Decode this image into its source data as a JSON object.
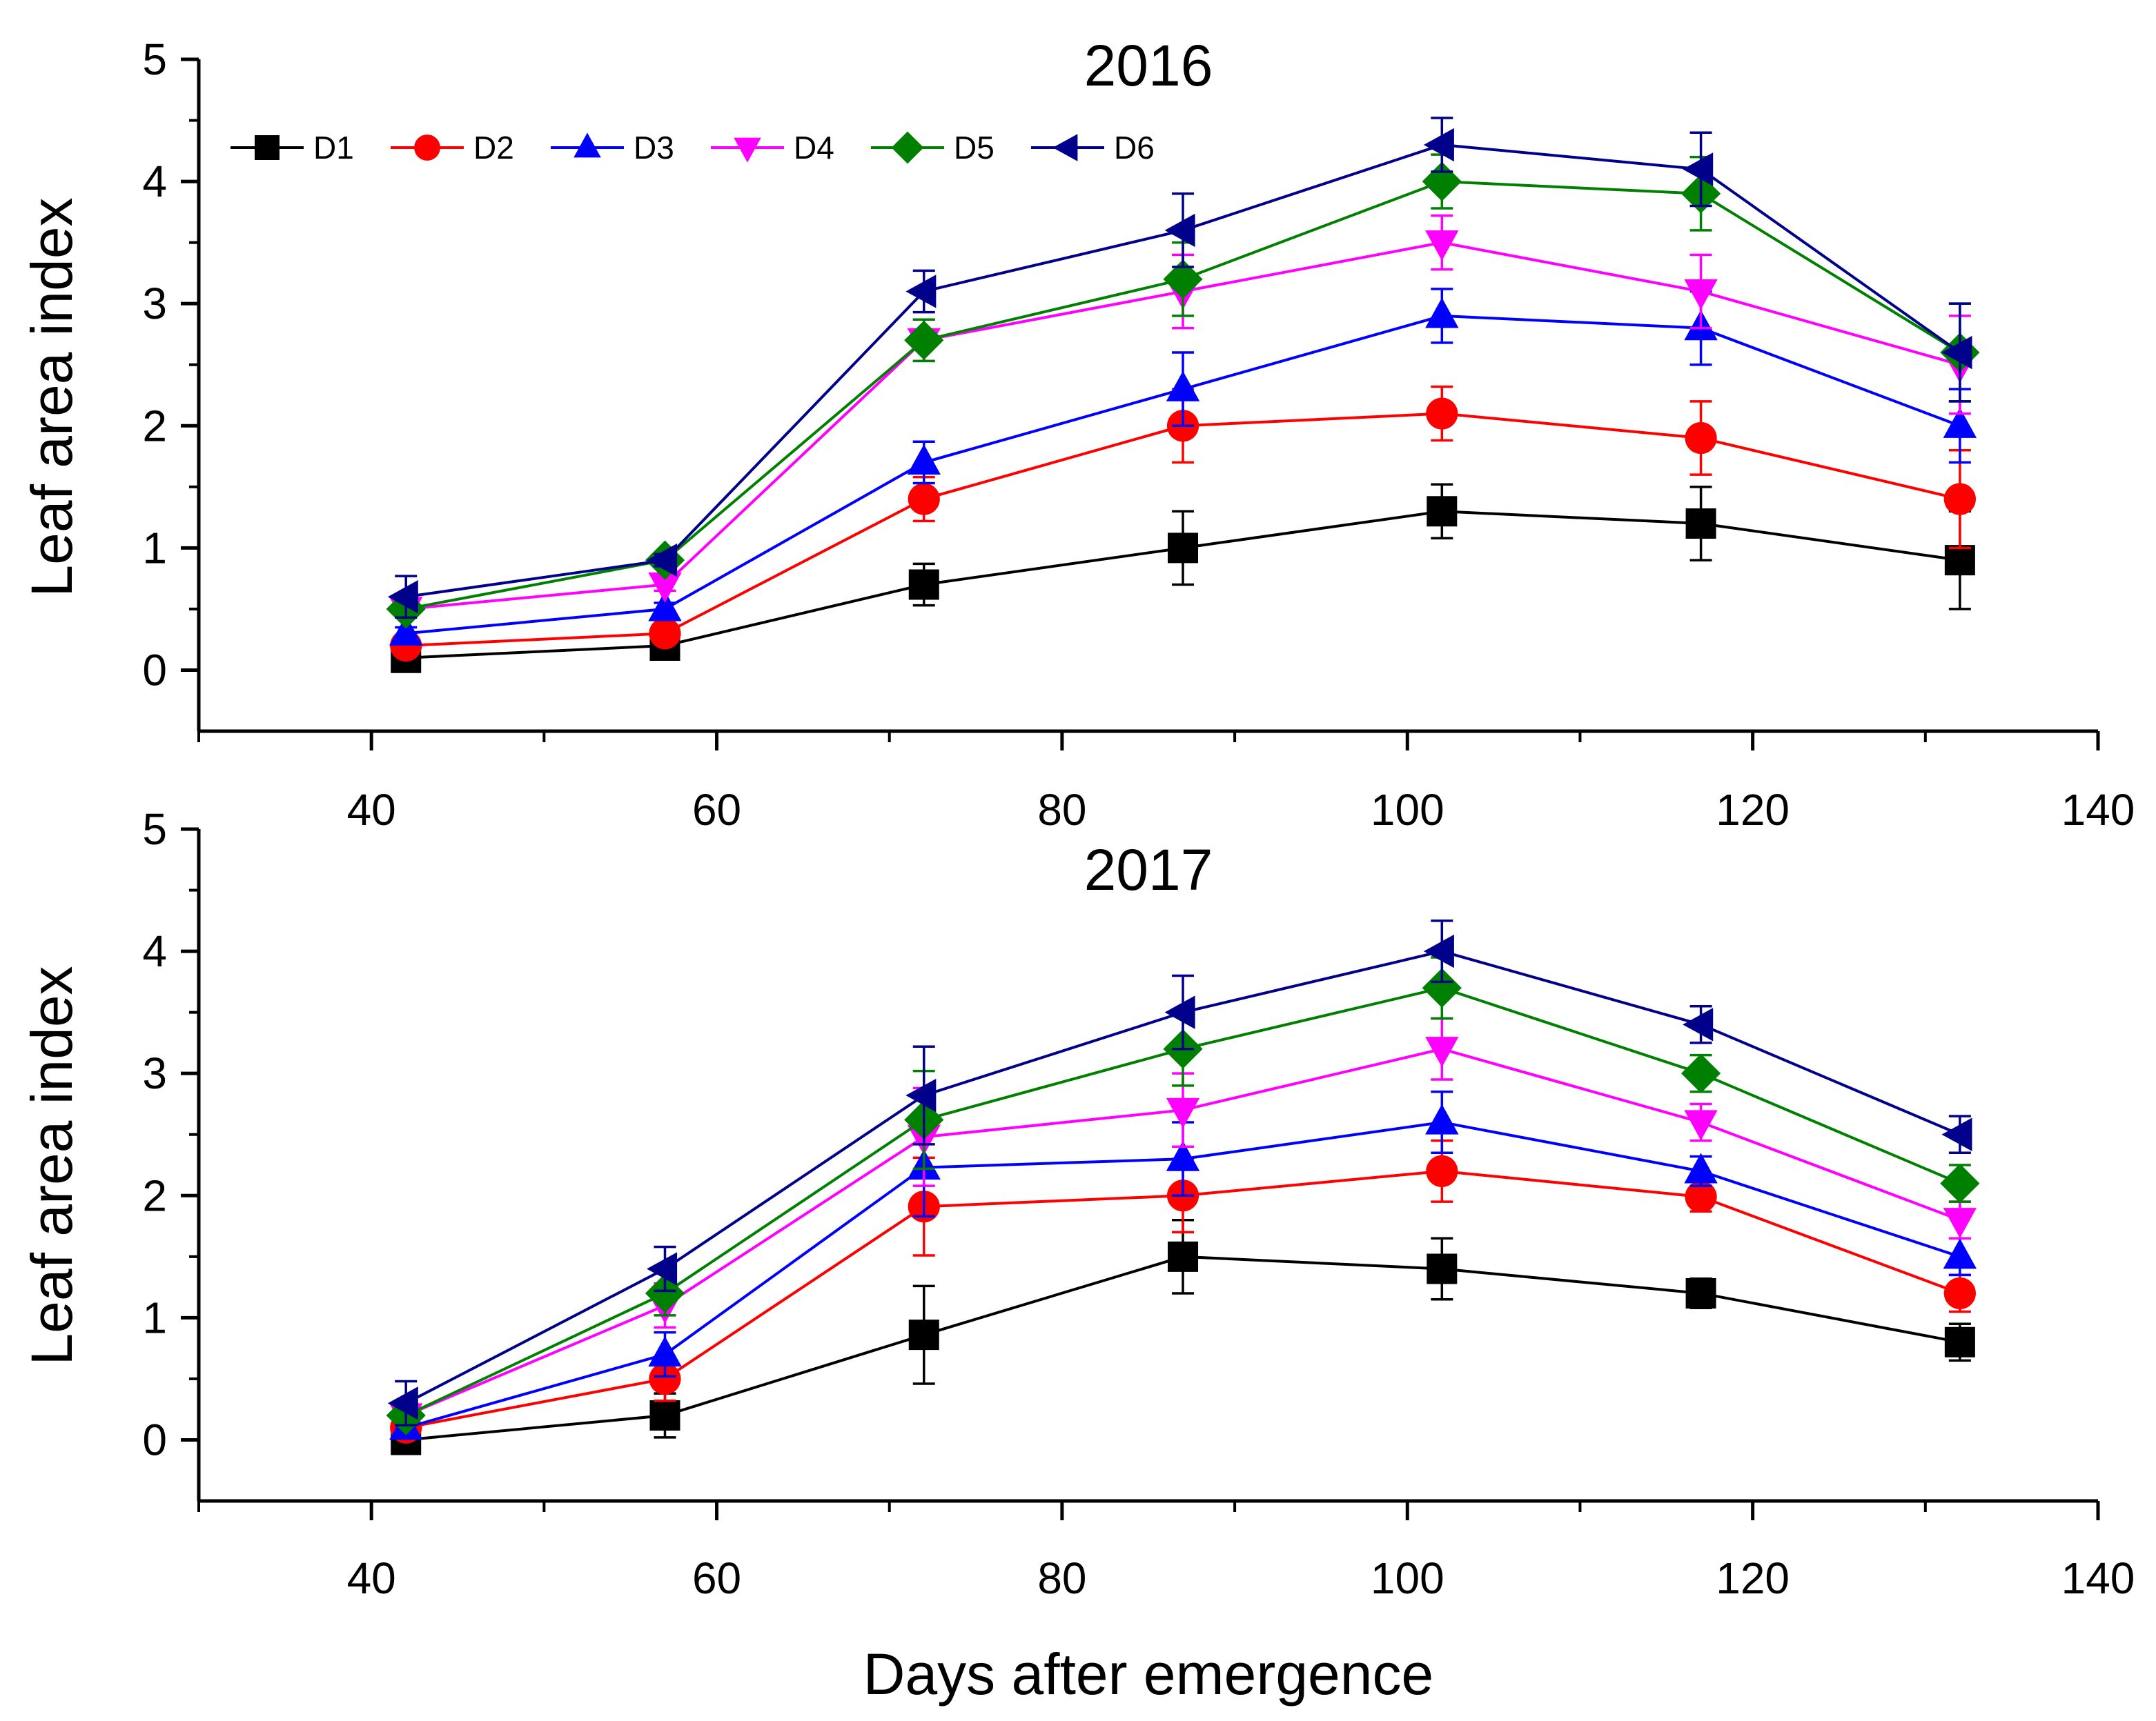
{
  "figure": {
    "xlabel": "Days after emergence",
    "ylabel": "Leaf area index"
  },
  "chart_data": [
    {
      "type": "line",
      "title": "2016",
      "xlabel": "Days after emergence",
      "ylabel": "Leaf area index",
      "xlim": [
        30,
        140
      ],
      "ylim": [
        -0.5,
        5
      ],
      "xticks": [
        40,
        60,
        80,
        100,
        120,
        140
      ],
      "yticks": [
        0,
        1,
        2,
        3,
        4,
        5
      ],
      "legend": "top-left",
      "x": [
        42,
        57,
        72,
        87,
        102,
        117,
        132
      ],
      "series": [
        {
          "name": "D1",
          "color": "#000000",
          "marker": "square",
          "values": [
            0.1,
            0.2,
            0.7,
            1.0,
            1.3,
            1.2,
            0.9
          ],
          "errors": [
            0.05,
            0.05,
            0.17,
            0.3,
            0.22,
            0.3,
            0.4
          ]
        },
        {
          "name": "D2",
          "color": "#ff0000",
          "marker": "circle",
          "values": [
            0.2,
            0.3,
            1.4,
            2.0,
            2.1,
            1.9,
            1.4
          ],
          "errors": [
            0.05,
            0.05,
            0.18,
            0.3,
            0.22,
            0.3,
            0.4
          ]
        },
        {
          "name": "D3",
          "color": "#0000ff",
          "marker": "triangle-up",
          "values": [
            0.3,
            0.5,
            1.7,
            2.3,
            2.9,
            2.8,
            2.0
          ],
          "errors": [
            0.05,
            0.05,
            0.17,
            0.3,
            0.22,
            0.3,
            0.3
          ]
        },
        {
          "name": "D4",
          "color": "#ff00ff",
          "marker": "triangle-down",
          "values": [
            0.5,
            0.7,
            2.7,
            3.1,
            3.5,
            3.1,
            2.5
          ],
          "errors": [
            0.05,
            0.05,
            0.17,
            0.3,
            0.22,
            0.3,
            0.4
          ]
        },
        {
          "name": "D5",
          "color": "#008000",
          "marker": "diamond",
          "values": [
            0.5,
            0.9,
            2.7,
            3.2,
            4.0,
            3.9,
            2.6
          ],
          "errors": [
            0.05,
            0.05,
            0.17,
            0.3,
            0.22,
            0.3,
            0.4
          ]
        },
        {
          "name": "D6",
          "color": "#00008b",
          "marker": "triangle-left",
          "values": [
            0.6,
            0.9,
            3.1,
            3.6,
            4.3,
            4.1,
            2.6
          ],
          "errors": [
            0.17,
            0.05,
            0.17,
            0.3,
            0.22,
            0.3,
            0.4
          ]
        }
      ]
    },
    {
      "type": "line",
      "title": "2017",
      "xlabel": "Days after emergence",
      "ylabel": "Leaf area index",
      "xlim": [
        30,
        140
      ],
      "ylim": [
        -0.5,
        5
      ],
      "xticks": [
        40,
        60,
        80,
        100,
        120,
        140
      ],
      "yticks": [
        0,
        1,
        2,
        3,
        4,
        5
      ],
      "legend": "none",
      "x": [
        42,
        57,
        72,
        87,
        102,
        117,
        132
      ],
      "series": [
        {
          "name": "D1",
          "color": "#000000",
          "marker": "square",
          "values": [
            0.0,
            0.2,
            0.86,
            1.5,
            1.4,
            1.2,
            0.8
          ],
          "errors": [
            0.03,
            0.18,
            0.4,
            0.3,
            0.25,
            0.12,
            0.15
          ]
        },
        {
          "name": "D2",
          "color": "#ff0000",
          "marker": "circle",
          "values": [
            0.1,
            0.5,
            1.91,
            2.0,
            2.2,
            1.99,
            1.2
          ],
          "errors": [
            0.03,
            0.18,
            0.4,
            0.3,
            0.25,
            0.12,
            0.15
          ]
        },
        {
          "name": "D3",
          "color": "#0000ff",
          "marker": "triangle-up",
          "values": [
            0.1,
            0.7,
            2.23,
            2.3,
            2.6,
            2.2,
            1.5
          ],
          "errors": [
            0.03,
            0.18,
            0.4,
            0.3,
            0.25,
            0.12,
            0.15
          ]
        },
        {
          "name": "D4",
          "color": "#ff00ff",
          "marker": "triangle-down",
          "values": [
            0.2,
            1.1,
            2.48,
            2.7,
            3.2,
            2.6,
            1.8
          ],
          "errors": [
            0.03,
            0.18,
            0.4,
            0.3,
            0.25,
            0.15,
            0.15
          ]
        },
        {
          "name": "D5",
          "color": "#008000",
          "marker": "diamond",
          "values": [
            0.2,
            1.2,
            2.62,
            3.2,
            3.7,
            3.0,
            2.1
          ],
          "errors": [
            0.03,
            0.18,
            0.4,
            0.3,
            0.25,
            0.15,
            0.15
          ]
        },
        {
          "name": "D6",
          "color": "#00008b",
          "marker": "triangle-left",
          "values": [
            0.3,
            1.4,
            2.82,
            3.5,
            4.0,
            3.4,
            2.5
          ],
          "errors": [
            0.18,
            0.18,
            0.4,
            0.3,
            0.25,
            0.15,
            0.15
          ]
        }
      ]
    }
  ]
}
